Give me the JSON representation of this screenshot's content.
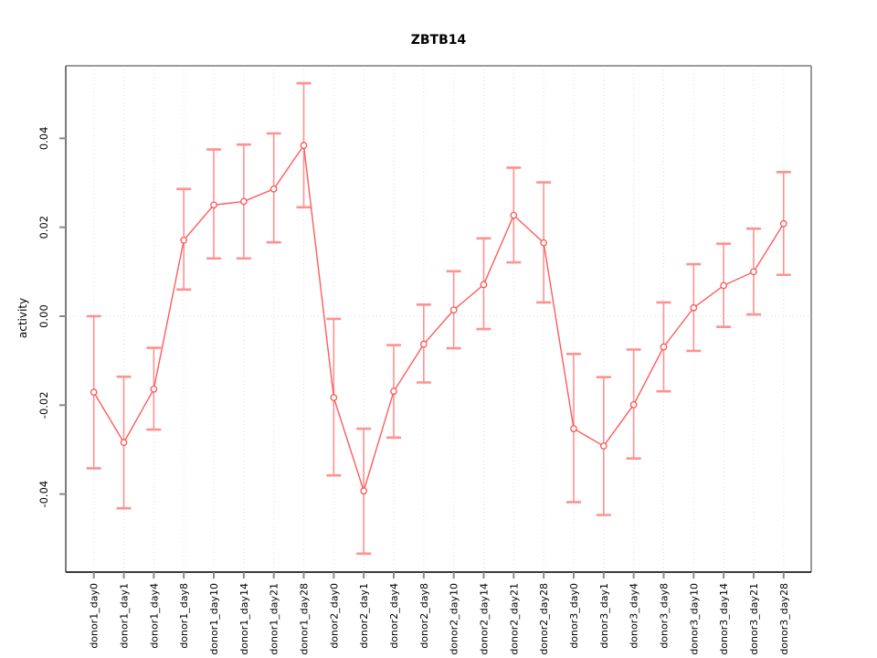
{
  "window": {
    "title": "ZBTB14"
  },
  "chart_data": {
    "type": "line",
    "title": "ZBTB14",
    "xlabel": "",
    "ylabel": "activity",
    "legend_position": "none",
    "grid": {
      "vertical_dotted_per_category": true,
      "horizontal_dotted_at_zero": true
    },
    "ylim": [
      -0.056,
      0.055
    ],
    "ytick_labels": [
      "0.04",
      "0.02",
      "0.00",
      "-0.02",
      "-0.04"
    ],
    "ytick_values": [
      0.04,
      0.02,
      0.0,
      -0.02,
      -0.04
    ],
    "categories": [
      "donor1_day0",
      "donor1_day1",
      "donor1_day4",
      "donor1_day8",
      "donor1_day10",
      "donor1_day14",
      "donor1_day21",
      "donor1_day28",
      "donor2_day0",
      "donor2_day1",
      "donor2_day4",
      "donor2_day8",
      "donor2_day10",
      "donor2_day14",
      "donor2_day21",
      "donor2_day28",
      "donor3_day0",
      "donor3_day1",
      "donor3_day4",
      "donor3_day8",
      "donor3_day10",
      "donor3_day14",
      "donor3_day21",
      "donor3_day28"
    ],
    "series": [
      {
        "name": "activity",
        "marker": "open-circle",
        "values": [
          -0.0171,
          -0.0284,
          -0.0164,
          0.0171,
          0.025,
          0.0258,
          0.0286,
          0.0384,
          -0.0183,
          -0.0393,
          -0.0169,
          -0.0063,
          0.0014,
          0.0071,
          0.0227,
          0.0165,
          -0.0253,
          -0.0292,
          -0.0199,
          -0.0069,
          0.0019,
          0.0069,
          0.01,
          0.0208
        ],
        "error_low": [
          -0.0342,
          -0.0432,
          -0.0255,
          0.006,
          0.013,
          0.013,
          0.0166,
          0.0245,
          -0.0358,
          -0.0534,
          -0.0273,
          -0.0149,
          -0.0072,
          -0.0029,
          0.0121,
          0.0031,
          -0.0418,
          -0.0447,
          -0.032,
          -0.0169,
          -0.0078,
          -0.0024,
          0.0004,
          0.0093
        ],
        "error_high": [
          0.0,
          -0.0136,
          -0.0071,
          0.0286,
          0.0375,
          0.0386,
          0.0411,
          0.0524,
          -0.0006,
          -0.0253,
          -0.0065,
          0.0026,
          0.0101,
          0.0175,
          0.0334,
          0.0301,
          -0.0085,
          -0.0137,
          -0.0075,
          0.0031,
          0.0117,
          0.0163,
          0.0197,
          0.0324
        ]
      }
    ],
    "colors": {
      "line": "#ff5b5b",
      "marker": "#ff5252",
      "error_bar": "#ff9191",
      "grid": "#dedede",
      "zero_line": "#d8d8d8",
      "axis_bottom": "#3a3a3a",
      "axis_left": "#7a7a7a",
      "frame_top_right": "#9a9a9a",
      "tick": "#8a8a8a",
      "text": "#000000"
    }
  }
}
